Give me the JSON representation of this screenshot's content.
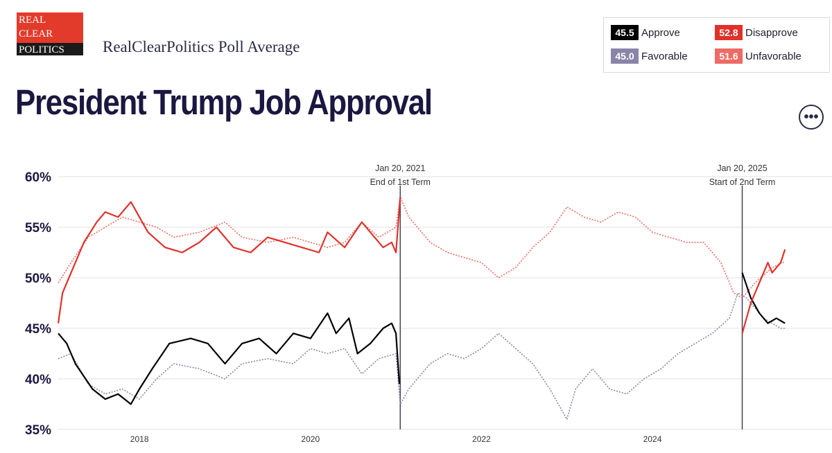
{
  "header": {
    "logo_lines": [
      "REAL",
      "CLEAR",
      "POLITICS"
    ],
    "subtitle": "RealClearPolitics Poll Average",
    "title": "President Trump Job Approval"
  },
  "legend": [
    {
      "value": "45.5",
      "label": "Approve",
      "color": "#000000"
    },
    {
      "value": "52.8",
      "label": "Disapprove",
      "color": "#e0312a"
    },
    {
      "value": "45.0",
      "label": "Favorable",
      "color": "#8a84a8"
    },
    {
      "value": "51.6",
      "label": "Unfavorable",
      "color": "#ee6a64"
    }
  ],
  "more_button": "•••",
  "chart_data": {
    "type": "line",
    "x_unit": "year",
    "xlim": [
      2017.05,
      2026.1
    ],
    "ylim": [
      35,
      60
    ],
    "yticks": [
      "60%",
      "55%",
      "50%",
      "45%",
      "40%",
      "35%"
    ],
    "ytick_values": [
      60,
      55,
      50,
      45,
      40,
      35
    ],
    "xticks": [
      "2018",
      "2020",
      "2022",
      "2024"
    ],
    "xtick_values": [
      2018,
      2020,
      2022,
      2024
    ],
    "grid": true,
    "annotations": [
      {
        "x": 2021.05,
        "lines": [
          "Jan 20, 2021",
          "End of 1st Term"
        ]
      },
      {
        "x": 2025.05,
        "lines": [
          "Jan 20, 2025",
          "Start of 2nd Term"
        ]
      }
    ],
    "series": [
      {
        "name": "Disapprove",
        "color": "#e0312a",
        "style": "solid",
        "x": [
          2017.05,
          2017.1,
          2017.2,
          2017.35,
          2017.5,
          2017.6,
          2017.75,
          2017.9,
          2018.0,
          2018.1,
          2018.3,
          2018.5,
          2018.7,
          2018.9,
          2019.1,
          2019.3,
          2019.5,
          2019.7,
          2019.9,
          2020.1,
          2020.2,
          2020.4,
          2020.6,
          2020.75,
          2020.85,
          2020.95,
          2021.0,
          2021.05,
          2025.05,
          2025.15,
          2025.25,
          2025.35,
          2025.4,
          2025.5,
          2025.55
        ],
        "y": [
          45.5,
          48.5,
          50.5,
          53.5,
          55.5,
          56.5,
          56.0,
          57.5,
          56.0,
          54.5,
          53.0,
          52.5,
          53.5,
          55.0,
          53.0,
          52.5,
          54.0,
          53.5,
          53.0,
          52.5,
          54.5,
          53.0,
          55.5,
          54.0,
          53.0,
          53.5,
          52.5,
          58.0,
          44.5,
          47.5,
          49.5,
          51.5,
          50.5,
          51.5,
          52.8
        ]
      },
      {
        "name": "Approve",
        "color": "#000000",
        "style": "solid",
        "x": [
          2017.05,
          2017.15,
          2017.25,
          2017.45,
          2017.6,
          2017.75,
          2017.9,
          2018.0,
          2018.15,
          2018.35,
          2018.6,
          2018.8,
          2019.0,
          2019.2,
          2019.4,
          2019.6,
          2019.8,
          2020.0,
          2020.2,
          2020.3,
          2020.45,
          2020.55,
          2020.7,
          2020.85,
          2020.95,
          2021.0,
          2021.04,
          2025.05,
          2025.15,
          2025.25,
          2025.35,
          2025.45,
          2025.55
        ],
        "y": [
          44.5,
          43.5,
          41.5,
          39.0,
          38.0,
          38.5,
          37.5,
          39.0,
          41.0,
          43.5,
          44.0,
          43.5,
          41.5,
          43.5,
          44.0,
          42.5,
          44.5,
          44.0,
          46.5,
          44.5,
          46.0,
          42.5,
          43.5,
          45.0,
          45.5,
          44.5,
          39.5,
          50.5,
          48.0,
          46.5,
          45.5,
          46.0,
          45.5
        ]
      },
      {
        "name": "Favorable",
        "color": "#8a84a8",
        "style": "dotted",
        "x": [
          2017.05,
          2017.2,
          2017.4,
          2017.6,
          2017.8,
          2018.0,
          2018.2,
          2018.4,
          2018.7,
          2019.0,
          2019.2,
          2019.5,
          2019.8,
          2020.0,
          2020.2,
          2020.4,
          2020.6,
          2020.8,
          2021.0,
          2021.05,
          2021.15,
          2021.4,
          2021.6,
          2021.8,
          2022.0,
          2022.2,
          2022.4,
          2022.6,
          2022.8,
          2023.0,
          2023.1,
          2023.3,
          2023.5,
          2023.7,
          2023.9,
          2024.1,
          2024.3,
          2024.5,
          2024.7,
          2024.9,
          2025.0,
          2025.1,
          2025.3,
          2025.5,
          2025.55
        ],
        "y": [
          42.0,
          42.5,
          39.5,
          38.5,
          39.0,
          38.0,
          40.0,
          41.5,
          41.0,
          40.0,
          41.5,
          42.0,
          41.5,
          43.0,
          42.5,
          43.0,
          40.5,
          42.0,
          42.5,
          37.5,
          39.0,
          41.5,
          42.5,
          42.0,
          43.0,
          44.5,
          43.0,
          41.5,
          39.0,
          36.0,
          39.0,
          41.0,
          39.0,
          38.5,
          40.0,
          41.0,
          42.5,
          43.5,
          44.5,
          46.0,
          48.5,
          48.0,
          46.0,
          45.0,
          45.0
        ]
      },
      {
        "name": "Unfavorable",
        "color": "#ee6a64",
        "style": "dotted",
        "x": [
          2017.05,
          2017.2,
          2017.4,
          2017.6,
          2017.8,
          2018.0,
          2018.2,
          2018.4,
          2018.7,
          2019.0,
          2019.2,
          2019.5,
          2019.8,
          2020.0,
          2020.2,
          2020.4,
          2020.6,
          2020.8,
          2021.0,
          2021.05,
          2021.15,
          2021.4,
          2021.6,
          2021.8,
          2022.0,
          2022.2,
          2022.4,
          2022.6,
          2022.8,
          2023.0,
          2023.2,
          2023.4,
          2023.6,
          2023.8,
          2024.0,
          2024.2,
          2024.4,
          2024.6,
          2024.8,
          2024.95,
          2025.05,
          2025.2,
          2025.4,
          2025.55
        ],
        "y": [
          49.5,
          51.5,
          54.0,
          55.0,
          56.0,
          55.5,
          55.0,
          54.0,
          54.5,
          55.5,
          54.0,
          53.5,
          54.0,
          53.5,
          53.0,
          53.5,
          55.5,
          54.0,
          55.0,
          58.0,
          56.0,
          53.5,
          52.5,
          52.0,
          51.5,
          50.0,
          51.0,
          53.0,
          54.5,
          57.0,
          56.0,
          55.5,
          56.5,
          56.0,
          54.5,
          54.0,
          53.5,
          53.5,
          51.5,
          48.5,
          48.0,
          49.5,
          51.0,
          51.6
        ]
      }
    ]
  }
}
